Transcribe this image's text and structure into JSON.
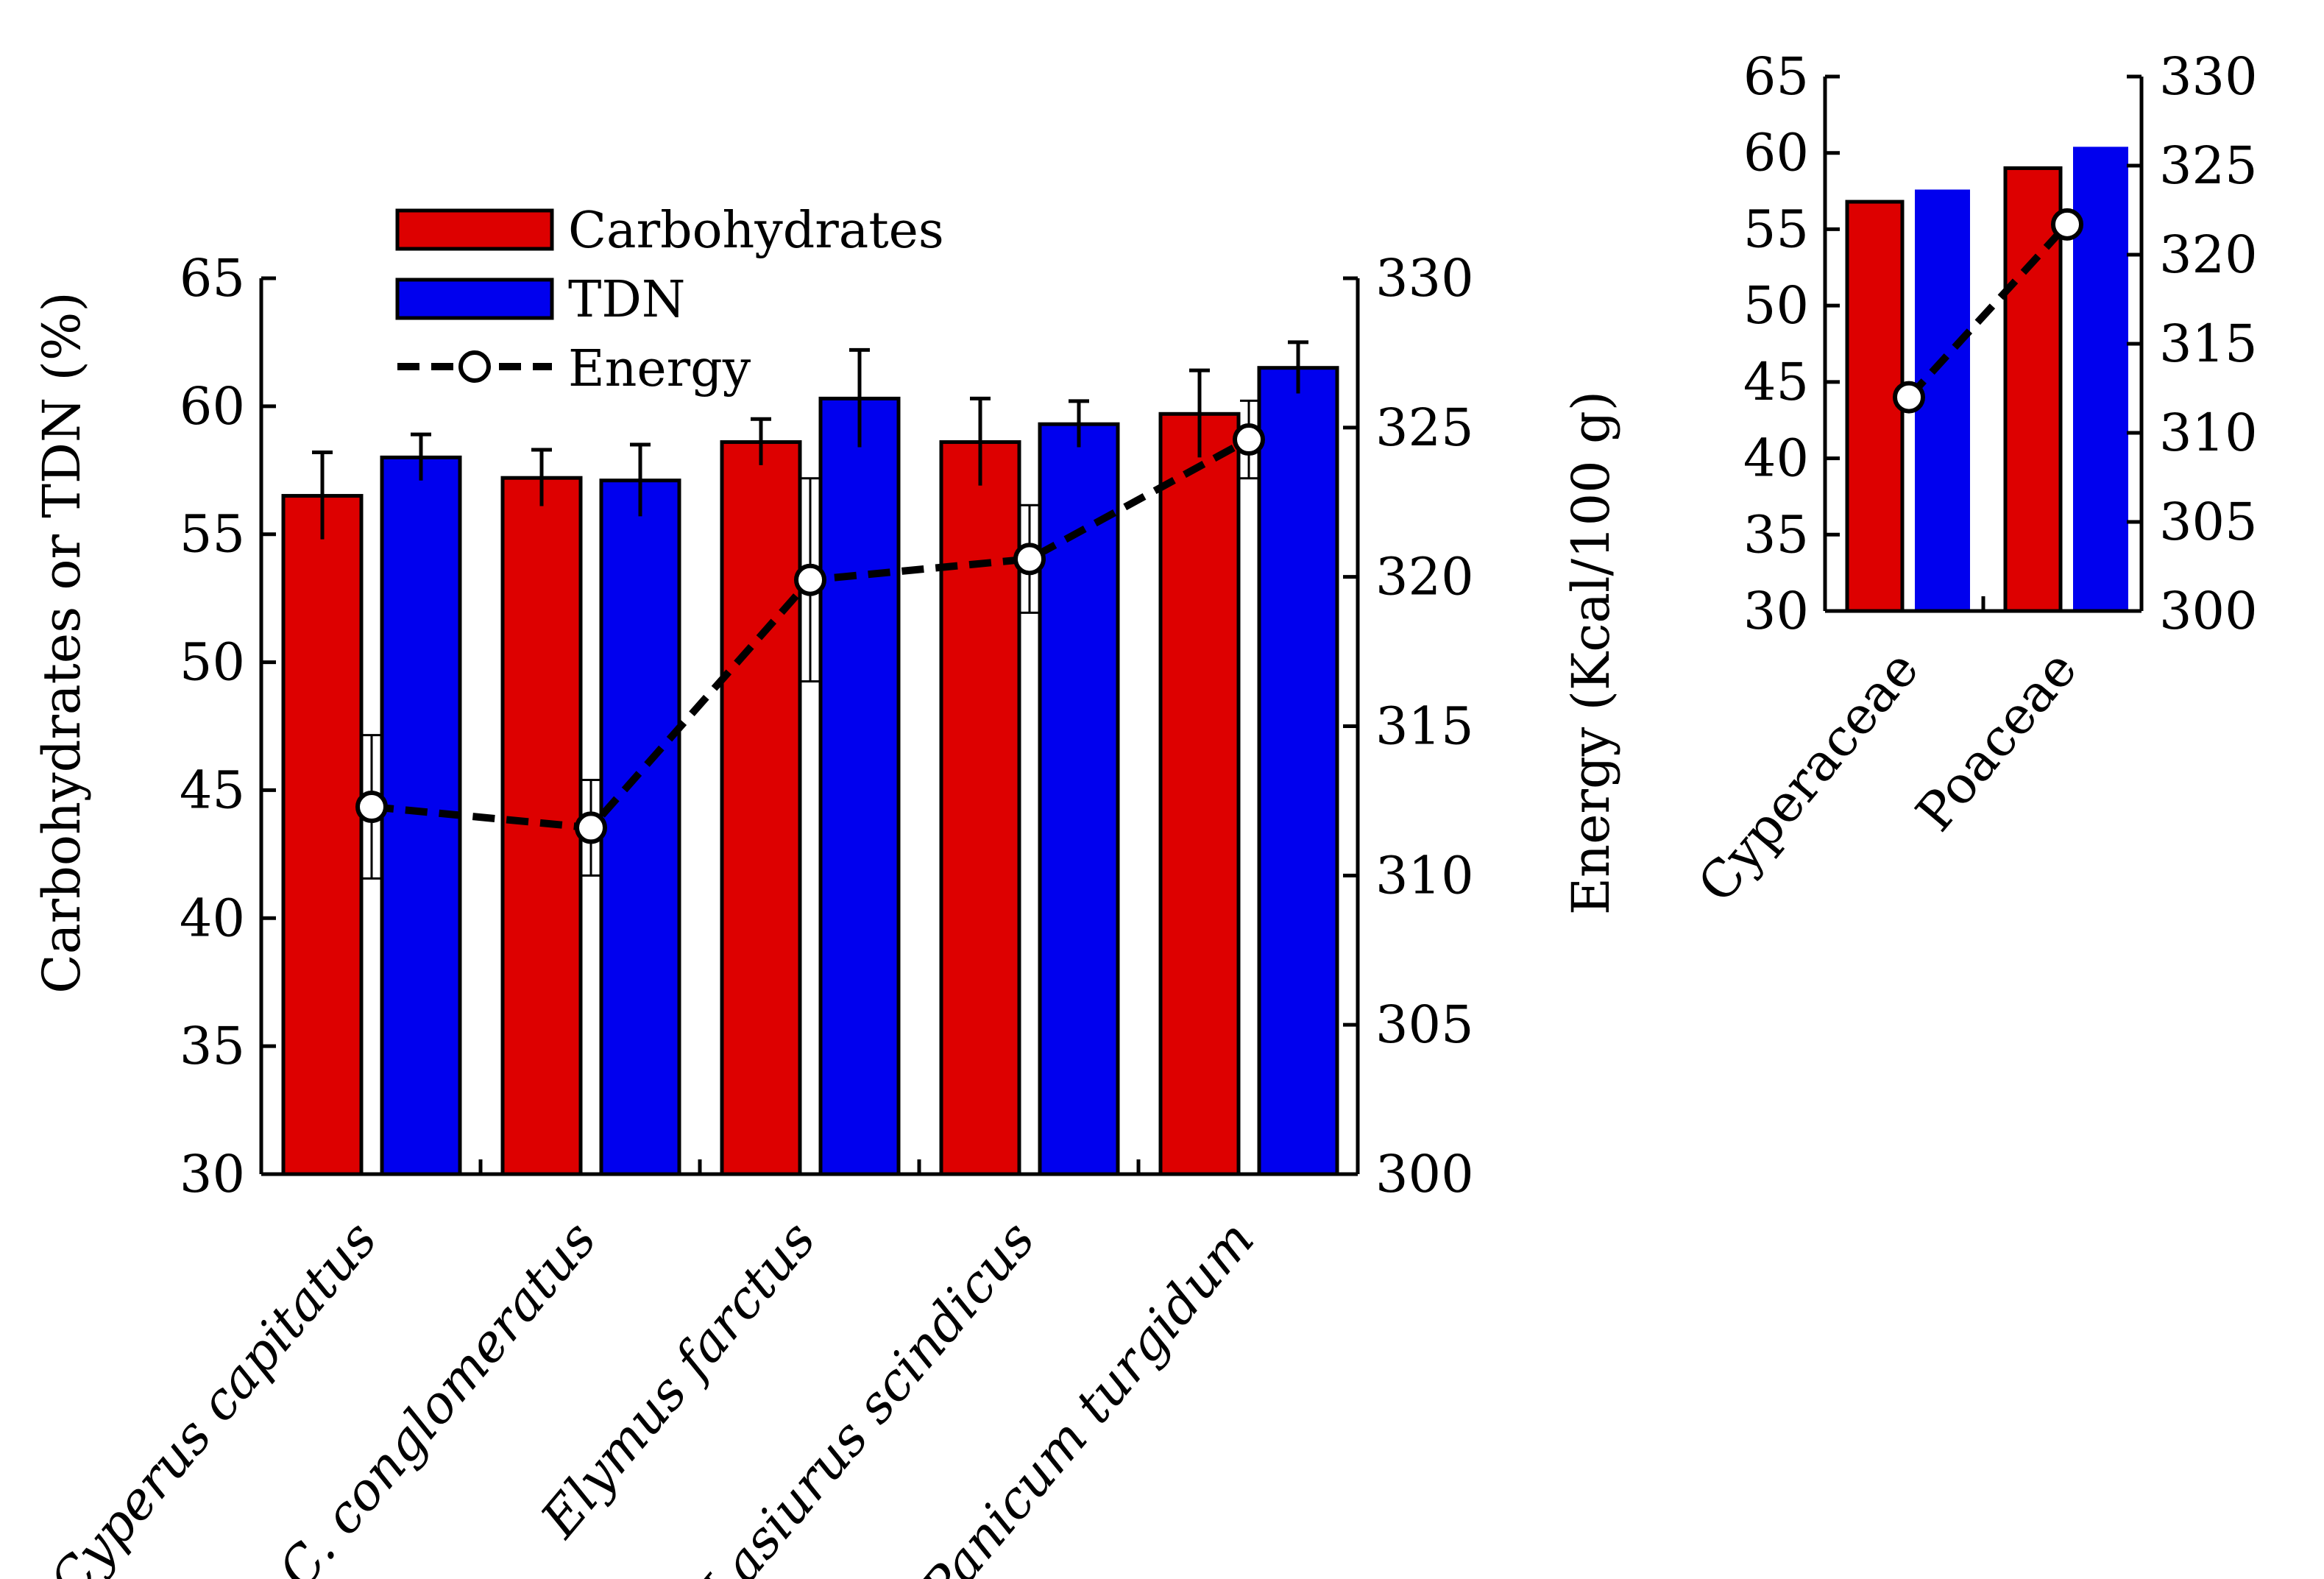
{
  "colors": {
    "carb": "#dd0000",
    "tdn": "#0000ee",
    "energy": "#000000"
  },
  "legend": {
    "carb_label": "Carbohydrates",
    "tdn_label": "TDN",
    "energy_label": "Energy"
  },
  "chart_data": [
    {
      "type": "bar",
      "title": "",
      "categories": [
        "Cyperus capitatus",
        "C. conglomeratus",
        "Elymus farctus",
        "Lasiurus scindicus",
        "Panicum turgidum"
      ],
      "ylabel": "Carbohydrates or TDN (%)",
      "y2label": "Energy (Kcal/100 g)",
      "ylim": [
        30,
        65
      ],
      "y2lim": [
        300,
        330
      ],
      "yticks": [
        "30",
        "35",
        "40",
        "45",
        "50",
        "55",
        "60",
        "65"
      ],
      "y2ticks": [
        "300",
        "305",
        "310",
        "315",
        "320",
        "325",
        "330"
      ],
      "series": [
        {
          "name": "Carbohydrates",
          "axis": "left",
          "values": [
            56.5,
            57.2,
            58.6,
            58.6,
            59.7
          ],
          "errors": [
            1.7,
            1.1,
            0.9,
            1.7,
            1.7
          ]
        },
        {
          "name": "TDN",
          "axis": "left",
          "values": [
            58.0,
            57.1,
            60.3,
            59.3,
            61.5
          ],
          "errors": [
            0.9,
            1.4,
            1.9,
            0.9,
            1.0
          ]
        },
        {
          "name": "Energy",
          "axis": "right",
          "line": true,
          "values": [
            312.3,
            311.6,
            319.9,
            320.6,
            324.6
          ],
          "errors": [
            2.4,
            1.6,
            3.4,
            1.8,
            1.3
          ]
        }
      ]
    },
    {
      "type": "bar",
      "title": "",
      "categories": [
        "Cyperaceae",
        "Poaceae"
      ],
      "ylim": [
        30,
        65
      ],
      "y2lim": [
        300,
        330
      ],
      "yticks": [
        "30",
        "35",
        "40",
        "45",
        "50",
        "55",
        "60",
        "65"
      ],
      "y2ticks": [
        "300",
        "305",
        "310",
        "315",
        "320",
        "325",
        "330"
      ],
      "series": [
        {
          "name": "Carbohydrates",
          "axis": "left",
          "values": [
            56.8,
            59.0
          ]
        },
        {
          "name": "TDN",
          "axis": "left",
          "values": [
            57.6,
            60.4
          ]
        },
        {
          "name": "Energy",
          "axis": "right",
          "line": true,
          "values": [
            312.0,
            321.7
          ]
        }
      ]
    }
  ]
}
